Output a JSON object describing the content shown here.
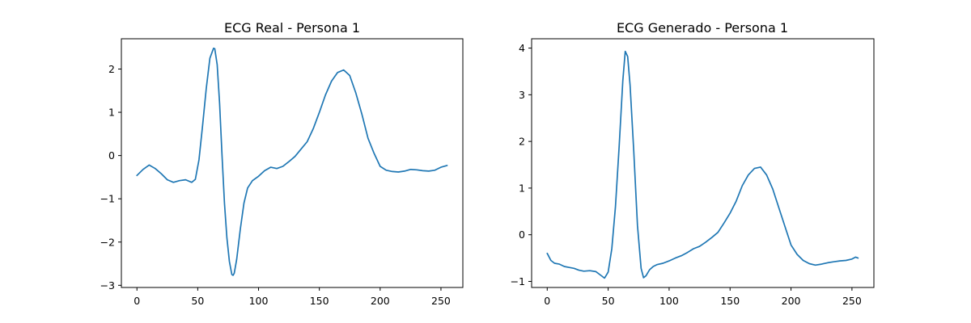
{
  "chart_data": [
    {
      "type": "line",
      "title": "ECG Real - Persona 1",
      "xlabel": "",
      "ylabel": "",
      "xlim": [
        -12.8,
        268
      ],
      "ylim": [
        -3.05,
        2.7
      ],
      "grid": false,
      "xticks": [
        0,
        50,
        100,
        150,
        200,
        250
      ],
      "yticks": [
        -3,
        -2,
        -1,
        0,
        1,
        2
      ],
      "ytick_labels": [
        "−3",
        "−2",
        "−1",
        "0",
        "1",
        "2"
      ],
      "color": "#1f77b4",
      "series": [
        {
          "x": [
            0,
            5,
            10,
            15,
            20,
            25,
            30,
            35,
            40,
            45,
            48,
            51,
            54,
            57,
            60,
            63,
            64,
            66,
            68,
            70,
            72,
            74,
            76,
            78,
            79,
            80,
            82,
            85,
            88,
            91,
            95,
            100,
            105,
            110,
            115,
            120,
            125,
            130,
            135,
            140,
            145,
            150,
            155,
            160,
            165,
            170,
            175,
            180,
            185,
            190,
            195,
            200,
            205,
            210,
            215,
            220,
            225,
            230,
            235,
            240,
            245,
            250,
            255
          ],
          "y": [
            -0.46,
            -0.32,
            -0.22,
            -0.3,
            -0.42,
            -0.56,
            -0.62,
            -0.58,
            -0.56,
            -0.62,
            -0.55,
            -0.1,
            0.7,
            1.55,
            2.25,
            2.48,
            2.47,
            2.1,
            1.2,
            0.0,
            -1.1,
            -1.9,
            -2.45,
            -2.75,
            -2.77,
            -2.72,
            -2.4,
            -1.7,
            -1.1,
            -0.75,
            -0.58,
            -0.48,
            -0.35,
            -0.27,
            -0.3,
            -0.25,
            -0.14,
            -0.02,
            0.15,
            0.32,
            0.62,
            1.0,
            1.4,
            1.72,
            1.92,
            1.98,
            1.85,
            1.45,
            0.95,
            0.4,
            0.05,
            -0.25,
            -0.34,
            -0.37,
            -0.38,
            -0.36,
            -0.32,
            -0.33,
            -0.35,
            -0.36,
            -0.34,
            -0.27,
            -0.23
          ]
        }
      ]
    },
    {
      "type": "line",
      "title": "ECG Generado - Persona 1",
      "xlabel": "",
      "ylabel": "",
      "xlim": [
        -12.8,
        268
      ],
      "ylim": [
        -1.13,
        4.2
      ],
      "grid": false,
      "xticks": [
        0,
        50,
        100,
        150,
        200,
        250
      ],
      "yticks": [
        -1,
        0,
        1,
        2,
        3,
        4
      ],
      "ytick_labels": [
        "−1",
        "0",
        "1",
        "2",
        "3",
        "4"
      ],
      "color": "#1f77b4",
      "series": [
        {
          "x": [
            0,
            3,
            6,
            10,
            14,
            18,
            22,
            26,
            30,
            35,
            40,
            44,
            47,
            50,
            53,
            56,
            59,
            62,
            64,
            66,
            68,
            71,
            74,
            77,
            79,
            81,
            84,
            87,
            90,
            95,
            100,
            105,
            110,
            115,
            120,
            125,
            130,
            135,
            140,
            145,
            150,
            155,
            160,
            165,
            170,
            175,
            180,
            185,
            190,
            195,
            200,
            205,
            210,
            215,
            220,
            225,
            230,
            235,
            240,
            245,
            250,
            253,
            255
          ],
          "y": [
            -0.4,
            -0.55,
            -0.61,
            -0.63,
            -0.68,
            -0.7,
            -0.72,
            -0.76,
            -0.78,
            -0.77,
            -0.79,
            -0.87,
            -0.93,
            -0.8,
            -0.3,
            0.6,
            1.9,
            3.3,
            3.93,
            3.82,
            3.2,
            1.8,
            0.2,
            -0.72,
            -0.92,
            -0.88,
            -0.75,
            -0.68,
            -0.64,
            -0.61,
            -0.56,
            -0.5,
            -0.45,
            -0.38,
            -0.3,
            -0.25,
            -0.16,
            -0.06,
            0.05,
            0.25,
            0.46,
            0.72,
            1.05,
            1.28,
            1.42,
            1.45,
            1.28,
            0.98,
            0.58,
            0.18,
            -0.22,
            -0.42,
            -0.55,
            -0.62,
            -0.65,
            -0.63,
            -0.6,
            -0.58,
            -0.56,
            -0.55,
            -0.52,
            -0.48,
            -0.5
          ]
        }
      ]
    }
  ]
}
